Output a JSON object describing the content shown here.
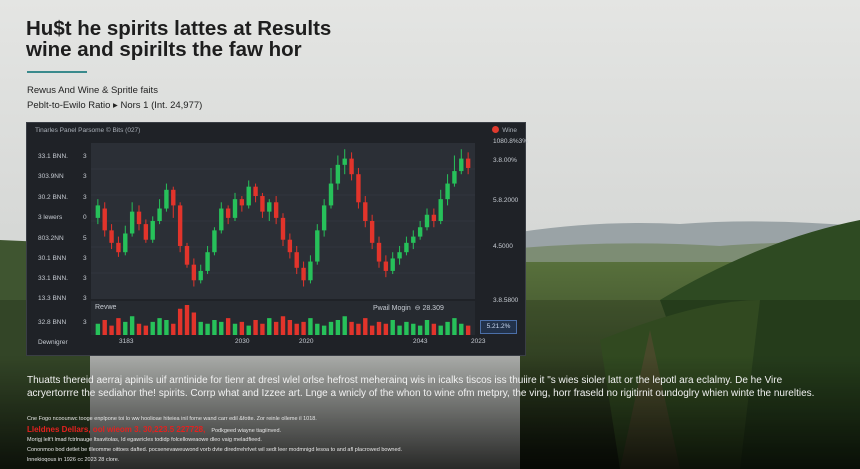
{
  "header": {
    "headline_line1": "Hu$t he spirits lattes at Results",
    "headline_line2": "wine and spirilts the faw hor",
    "subtitle": "Rewus And Wine & Spritle faits",
    "ratio_line": "Peblt-to-Ewilo Ratio ▸ Nors 1 (Int. 24,977)"
  },
  "chart_panel": {
    "title": "Tinarles Panel Parsome © Bits (027)",
    "status": "Wine",
    "volume_label": "Revwe",
    "profit_label": "Pwail Mogin",
    "profit_value": "⊖ 28.309",
    "price_tag": "5.21.2%",
    "bottom_left_label": "Dewnigrer",
    "left_labels": [
      "33.1 BNN.",
      "303.9NN",
      "30.2 BNN.",
      "3 lewers",
      "803.2NN",
      "30.1 BNN",
      "33.1 BNN.",
      "13.3 BNN",
      "32.8 BNN"
    ],
    "axis_labels": [
      "3",
      "3",
      "3",
      "0",
      "5",
      "3",
      "3",
      "3",
      "3"
    ],
    "right_labels": [
      "1080.8%3%",
      "3.8.00%",
      "5.8.2000",
      "4.5000",
      "3.8.5800"
    ],
    "x_labels": [
      "3183",
      "2030",
      "2020",
      "2043",
      "2023"
    ],
    "colors": {
      "up": "#27c15a",
      "down": "#e2342b",
      "bg": "#1f2227",
      "plot": "#2b2f36"
    }
  },
  "chart_data": {
    "type": "candlestick",
    "x_labels": [
      "3183",
      "2030",
      "2020",
      "2043",
      "2023"
    ],
    "candles": [
      {
        "o": 52,
        "c": 60,
        "h": 64,
        "l": 48
      },
      {
        "o": 58,
        "c": 44,
        "h": 62,
        "l": 40
      },
      {
        "o": 44,
        "c": 36,
        "h": 48,
        "l": 32
      },
      {
        "o": 36,
        "c": 30,
        "h": 40,
        "l": 27
      },
      {
        "o": 30,
        "c": 42,
        "h": 47,
        "l": 28
      },
      {
        "o": 42,
        "c": 56,
        "h": 62,
        "l": 40
      },
      {
        "o": 56,
        "c": 48,
        "h": 60,
        "l": 44
      },
      {
        "o": 48,
        "c": 38,
        "h": 51,
        "l": 36
      },
      {
        "o": 38,
        "c": 50,
        "h": 53,
        "l": 36
      },
      {
        "o": 50,
        "c": 58,
        "h": 64,
        "l": 48
      },
      {
        "o": 58,
        "c": 70,
        "h": 74,
        "l": 56
      },
      {
        "o": 70,
        "c": 60,
        "h": 72,
        "l": 52
      },
      {
        "o": 60,
        "c": 34,
        "h": 62,
        "l": 30
      },
      {
        "o": 34,
        "c": 22,
        "h": 36,
        "l": 20
      },
      {
        "o": 22,
        "c": 12,
        "h": 26,
        "l": 8
      },
      {
        "o": 12,
        "c": 18,
        "h": 22,
        "l": 10
      },
      {
        "o": 18,
        "c": 30,
        "h": 34,
        "l": 16
      },
      {
        "o": 30,
        "c": 44,
        "h": 46,
        "l": 28
      },
      {
        "o": 44,
        "c": 58,
        "h": 62,
        "l": 42
      },
      {
        "o": 58,
        "c": 52,
        "h": 60,
        "l": 48
      },
      {
        "o": 52,
        "c": 64,
        "h": 68,
        "l": 50
      },
      {
        "o": 64,
        "c": 60,
        "h": 66,
        "l": 56
      },
      {
        "o": 60,
        "c": 72,
        "h": 76,
        "l": 58
      },
      {
        "o": 72,
        "c": 66,
        "h": 74,
        "l": 62
      },
      {
        "o": 66,
        "c": 56,
        "h": 68,
        "l": 52
      },
      {
        "o": 56,
        "c": 62,
        "h": 64,
        "l": 50
      },
      {
        "o": 62,
        "c": 52,
        "h": 66,
        "l": 48
      },
      {
        "o": 52,
        "c": 38,
        "h": 55,
        "l": 34
      },
      {
        "o": 38,
        "c": 30,
        "h": 42,
        "l": 26
      },
      {
        "o": 30,
        "c": 20,
        "h": 34,
        "l": 16
      },
      {
        "o": 20,
        "c": 12,
        "h": 24,
        "l": 8
      },
      {
        "o": 12,
        "c": 24,
        "h": 28,
        "l": 10
      },
      {
        "o": 24,
        "c": 44,
        "h": 48,
        "l": 22
      },
      {
        "o": 44,
        "c": 60,
        "h": 64,
        "l": 40
      },
      {
        "o": 60,
        "c": 74,
        "h": 84,
        "l": 58
      },
      {
        "o": 74,
        "c": 86,
        "h": 92,
        "l": 70
      },
      {
        "o": 86,
        "c": 90,
        "h": 96,
        "l": 80
      },
      {
        "o": 90,
        "c": 80,
        "h": 94,
        "l": 76
      },
      {
        "o": 80,
        "c": 62,
        "h": 84,
        "l": 58
      },
      {
        "o": 62,
        "c": 50,
        "h": 66,
        "l": 46
      },
      {
        "o": 50,
        "c": 36,
        "h": 54,
        "l": 32
      },
      {
        "o": 36,
        "c": 24,
        "h": 40,
        "l": 20
      },
      {
        "o": 24,
        "c": 18,
        "h": 28,
        "l": 14
      },
      {
        "o": 18,
        "c": 26,
        "h": 30,
        "l": 16
      },
      {
        "o": 26,
        "c": 30,
        "h": 34,
        "l": 22
      },
      {
        "o": 30,
        "c": 36,
        "h": 40,
        "l": 28
      },
      {
        "o": 36,
        "c": 40,
        "h": 44,
        "l": 32
      },
      {
        "o": 40,
        "c": 46,
        "h": 50,
        "l": 38
      },
      {
        "o": 46,
        "c": 54,
        "h": 58,
        "l": 44
      },
      {
        "o": 54,
        "c": 50,
        "h": 58,
        "l": 46
      },
      {
        "o": 50,
        "c": 64,
        "h": 70,
        "l": 48
      },
      {
        "o": 64,
        "c": 74,
        "h": 80,
        "l": 60
      },
      {
        "o": 74,
        "c": 82,
        "h": 92,
        "l": 72
      },
      {
        "o": 82,
        "c": 90,
        "h": 96,
        "l": 80
      },
      {
        "o": 90,
        "c": 84,
        "h": 94,
        "l": 80
      }
    ],
    "volume": [
      6,
      8,
      5,
      9,
      7,
      10,
      6,
      5,
      7,
      9,
      8,
      6,
      14,
      16,
      12,
      7,
      6,
      8,
      7,
      9,
      6,
      7,
      5,
      8,
      6,
      9,
      7,
      10,
      8,
      6,
      7,
      9,
      6,
      5,
      7,
      8,
      10,
      7,
      6,
      9,
      5,
      7,
      6,
      8,
      5,
      7,
      6,
      5,
      8,
      6,
      5,
      7,
      9,
      6,
      5
    ],
    "y_range": [
      0,
      100
    ]
  },
  "article": {
    "paragraph": "Thuatts thereid aerraj apinils uif arntinide for tienr at dresl wlel orlse hefrost meherainq wis in icalks tiscos iss thuiire it \"s wies sioler latt or the lepotl ara eclalmy. De he Vire acryertorrre the sediahor the! spirits. Corrp what and Izzee art. Lnge a wnicly of the whon to wine ofm metpry, the ving, horr fraseld no rigitirnit oundoglry whien winte the nurelties.",
    "fine1": "Cne Fogo ncoounwc tooge enplpone toi lo ww hoolioae hiteiea inil forne wand carr edil &fotte. Zor reinle olleme il 1018.",
    "red_text": "Lleldnes Dellars, ool wieom 3. 30,223.5 227728,",
    "red_suffix": "Podkgeed wiayne tiagiinved.",
    "fine2": "Morigj lelt't lmad fctrlnauge ltsavitolas, Id egawricles todidp folcelloweaowe dleo vaig meladfieed.",
    "fine3": "Cononmoo bod detlet be tlleomme oittoes dafted. pocsenevaweuwond vorb dvte diredrrehrlvet wil sedt leer modmnigd lesoa to and afl placrowed bowned.",
    "fine4": "lnnekioqous in 1926 cc 2023 28 clore."
  }
}
